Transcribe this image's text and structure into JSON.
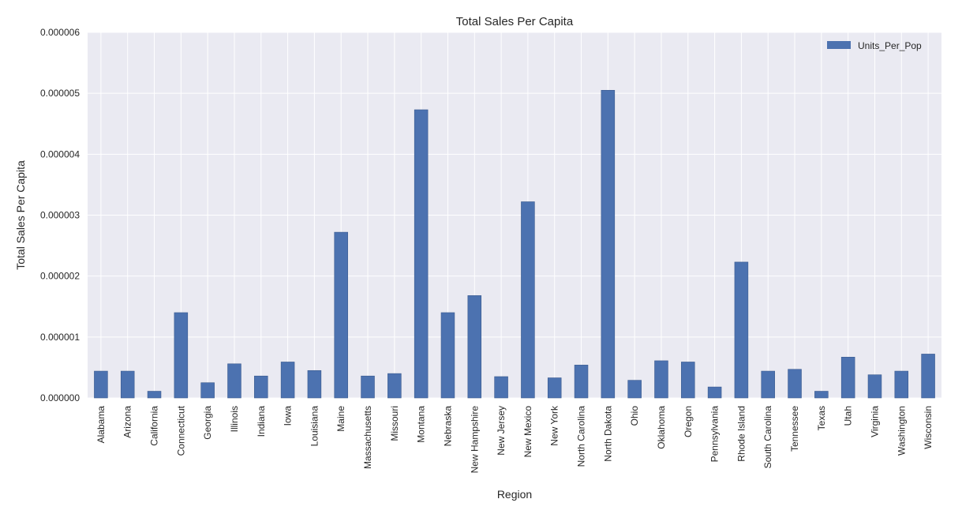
{
  "chart_data": {
    "type": "bar",
    "title": "Total Sales Per Capita",
    "xlabel": "Region",
    "ylabel": "Total Sales Per Capita",
    "ylim": [
      0,
      6e-06
    ],
    "yticks": [
      "0.000000",
      "0.000001",
      "0.000002",
      "0.000003",
      "0.000004",
      "0.000005",
      "0.000006"
    ],
    "grid": true,
    "legend_position": "top-right",
    "colors": {
      "bar": "#4c72b0",
      "background": "#eaeaf2",
      "grid": "#ffffff"
    },
    "categories": [
      "Alabama",
      "Arizona",
      "California",
      "Connecticut",
      "Georgia",
      "Illinois",
      "Indiana",
      "Iowa",
      "Louisiana",
      "Maine",
      "Massachusetts",
      "Missouri",
      "Montana",
      "Nebraska",
      "New Hampshire",
      "New Jersey",
      "New Mexico",
      "New York",
      "North Carolina",
      "North Dakota",
      "Ohio",
      "Oklahoma",
      "Oregon",
      "Pennsylvania",
      "Rhode Island",
      "South Carolina",
      "Tennessee",
      "Texas",
      "Utah",
      "Virginia",
      "Washington",
      "Wisconsin"
    ],
    "series": [
      {
        "name": "Units_Per_Pop",
        "values": [
          4.4e-07,
          4.4e-07,
          1.1e-07,
          1.4e-06,
          2.5e-07,
          5.6e-07,
          3.6e-07,
          5.9e-07,
          4.5e-07,
          2.72e-06,
          3.6e-07,
          4e-07,
          4.73e-06,
          1.4e-06,
          1.68e-06,
          3.5e-07,
          3.22e-06,
          3.3e-07,
          5.4e-07,
          5.05e-06,
          2.9e-07,
          6.1e-07,
          5.9e-07,
          1.8e-07,
          2.23e-06,
          4.4e-07,
          4.7e-07,
          1.1e-07,
          6.7e-07,
          3.8e-07,
          4.4e-07,
          7.2e-07
        ]
      }
    ]
  }
}
